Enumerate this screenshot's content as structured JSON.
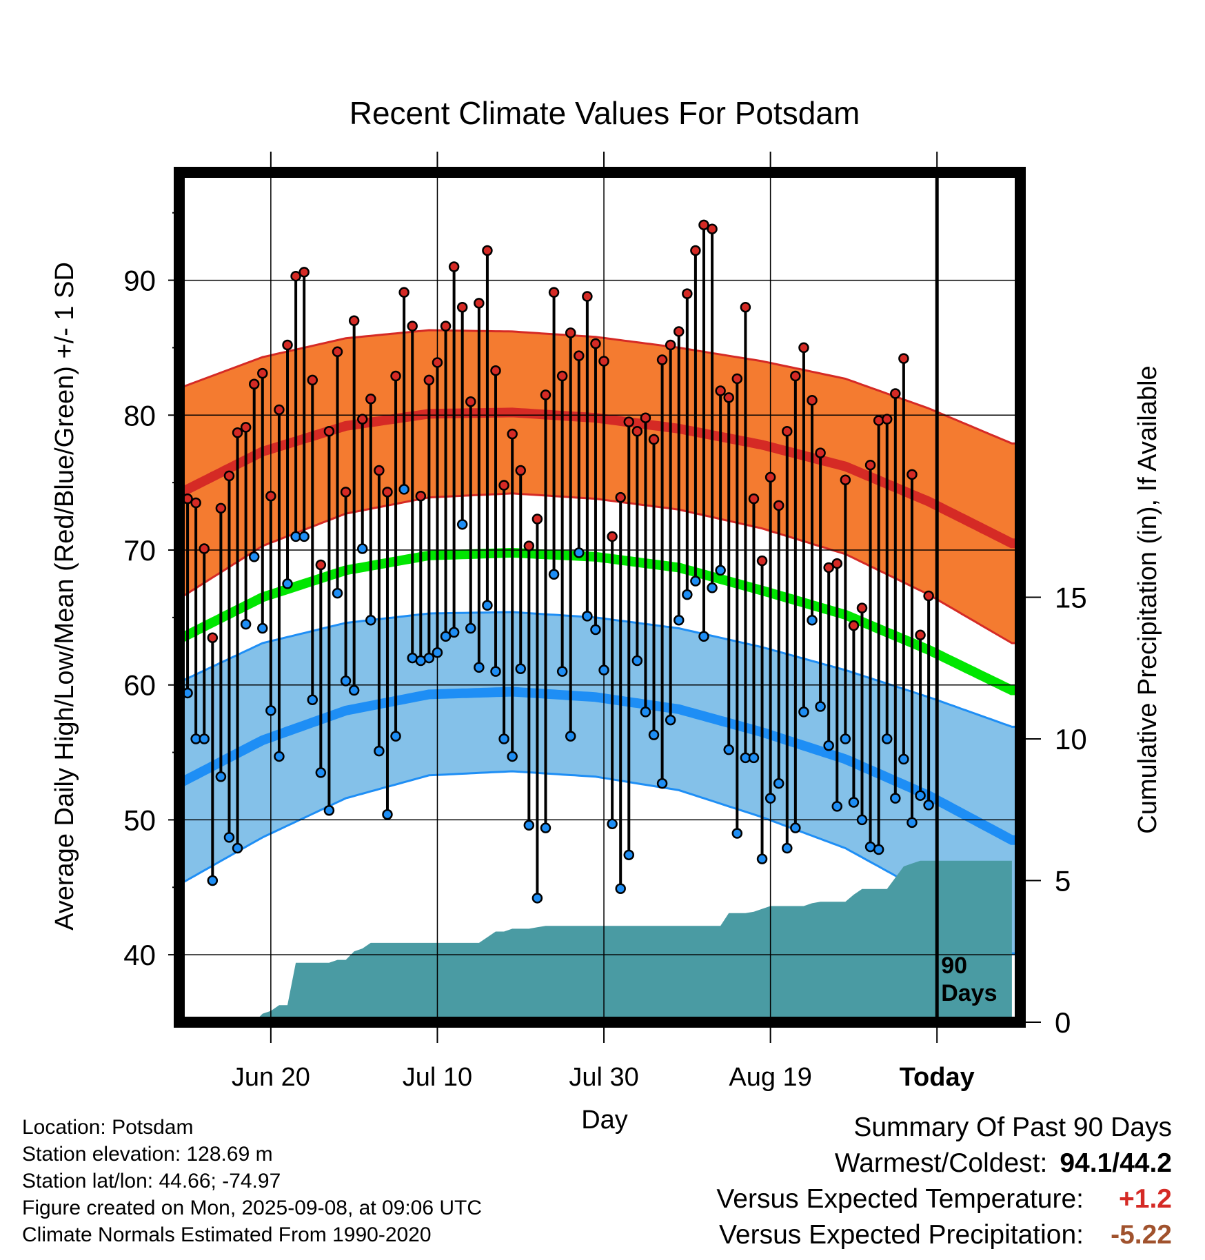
{
  "chart_data": {
    "type": "line",
    "title": "Recent Climate Values For Potsdam",
    "xlabel": "Day",
    "ylabel": "Average Daily High/Low/Mean (Red/Blue/Green) +/- 1 SD",
    "y2label": "Cumulative Precipitation (in), If Available",
    "x_tick_labels": [
      "Jun 20",
      "Jul 10",
      "Jul 30",
      "Aug 19",
      "Today"
    ],
    "x_tick_days": [
      11,
      31,
      51,
      71,
      91
    ],
    "y_ticks": [
      40,
      50,
      60,
      70,
      80,
      90
    ],
    "y_range": [
      35,
      98
    ],
    "y2_ticks": [
      0,
      5,
      10,
      15
    ],
    "y2_range": [
      0,
      30
    ],
    "x_range": [
      0,
      101
    ],
    "today_day": 91,
    "period_label_line1": "90",
    "period_label_line2": "Days",
    "colors": {
      "high": "#d52a25",
      "high_band": "#f47b30",
      "low": "#1e8ef5",
      "low_band": "#84c1e9",
      "mean": "#00e600",
      "precip": "#4a9ba3"
    },
    "normals": {
      "days": [
        0,
        10,
        20,
        30,
        40,
        50,
        60,
        70,
        80,
        90,
        100
      ],
      "high_mean": [
        74.2,
        77.3,
        79.2,
        80.1,
        80.2,
        79.8,
        79.0,
        77.8,
        76.2,
        73.6,
        70.5
      ],
      "high_sd": [
        7.8,
        7.0,
        6.5,
        6.2,
        6.0,
        6.0,
        6.0,
        6.2,
        6.5,
        6.9,
        7.4
      ],
      "low_mean": [
        52.7,
        55.9,
        58.1,
        59.3,
        59.5,
        59.1,
        58.2,
        56.5,
        54.5,
        51.8,
        48.5
      ],
      "low_sd": [
        7.5,
        7.2,
        6.5,
        6.0,
        5.9,
        5.9,
        6.0,
        6.3,
        6.6,
        7.3,
        8.4
      ],
      "daily_mean": [
        63.4,
        66.5,
        68.5,
        69.6,
        69.8,
        69.5,
        68.7,
        67.0,
        65.2,
        62.6,
        59.6
      ]
    },
    "series": [
      {
        "name": "High",
        "values": [
          73.8,
          73.5,
          70.1,
          63.5,
          73.1,
          75.5,
          78.7,
          79.1,
          82.3,
          83.1,
          74.0,
          80.4,
          85.2,
          90.3,
          90.6,
          82.6,
          68.9,
          78.8,
          84.7,
          74.3,
          87.0,
          79.7,
          81.2,
          75.9,
          74.3,
          82.9,
          89.1,
          86.6,
          74.0,
          82.6,
          83.9,
          86.6,
          91.0,
          88.0,
          81.0,
          88.3,
          92.2,
          83.3,
          74.8,
          78.6,
          75.9,
          70.3,
          72.3,
          81.5,
          89.1,
          82.9,
          86.1,
          84.4,
          88.8,
          85.3,
          84.0,
          71.0,
          73.9,
          79.5,
          78.8,
          79.8,
          78.2,
          84.1,
          85.2,
          86.2,
          89.0,
          92.2,
          94.1,
          93.8,
          81.8,
          81.3,
          82.7,
          88.0,
          73.8,
          69.2,
          75.4,
          73.3,
          78.8,
          82.9,
          85.0,
          81.1,
          77.2,
          68.7,
          69.0,
          75.2,
          64.4,
          65.7,
          76.3,
          79.6,
          79.7,
          81.6,
          84.2,
          75.6,
          63.7,
          66.6
        ]
      },
      {
        "name": "Low",
        "values": [
          59.4,
          56.0,
          56.0,
          45.5,
          53.2,
          48.7,
          47.9,
          64.5,
          69.5,
          64.2,
          58.1,
          54.7,
          67.5,
          71.0,
          71.0,
          58.9,
          53.5,
          50.7,
          66.8,
          60.3,
          59.6,
          70.1,
          64.8,
          55.1,
          50.4,
          56.2,
          74.5,
          62.0,
          61.8,
          62.0,
          62.4,
          63.6,
          63.9,
          71.9,
          64.2,
          61.3,
          65.9,
          61.0,
          56.0,
          54.7,
          61.2,
          49.6,
          44.2,
          49.4,
          68.2,
          61.0,
          56.2,
          69.8,
          65.1,
          64.1,
          61.1,
          49.7,
          44.9,
          47.4,
          61.8,
          58.0,
          56.3,
          52.7,
          57.4,
          64.8,
          66.7,
          67.7,
          63.6,
          67.2,
          68.5,
          55.2,
          49.0,
          54.6,
          54.6,
          47.1,
          51.6,
          52.7,
          47.9,
          49.4,
          58.0,
          64.8,
          58.4,
          55.5,
          51.0,
          56.0,
          51.3,
          50.0,
          48.0,
          47.8,
          56.0,
          51.6,
          54.5,
          49.8,
          51.8,
          51.1
        ]
      },
      {
        "name": "Cumulative Precipitation",
        "values": [
          0,
          0,
          0,
          0,
          0,
          0,
          0,
          0,
          0,
          0,
          0.3,
          0.4,
          0.6,
          0.6,
          2.1,
          2.1,
          2.1,
          2.1,
          2.1,
          2.2,
          2.2,
          2.5,
          2.6,
          2.8,
          2.8,
          2.8,
          2.8,
          2.8,
          2.8,
          2.8,
          2.8,
          2.8,
          2.8,
          2.8,
          2.8,
          2.8,
          2.8,
          3.0,
          3.2,
          3.2,
          3.3,
          3.3,
          3.3,
          3.35,
          3.4,
          3.4,
          3.4,
          3.4,
          3.4,
          3.4,
          3.4,
          3.4,
          3.4,
          3.4,
          3.4,
          3.4,
          3.4,
          3.4,
          3.4,
          3.4,
          3.4,
          3.4,
          3.4,
          3.4,
          3.4,
          3.4,
          3.85,
          3.85,
          3.85,
          3.9,
          4.0,
          4.1,
          4.1,
          4.1,
          4.1,
          4.1,
          4.2,
          4.25,
          4.25,
          4.25,
          4.25,
          4.5,
          4.7,
          4.7,
          4.7,
          4.7,
          5.1,
          5.5,
          5.6,
          5.7,
          5.7,
          5.7,
          5.7,
          5.7,
          5.7,
          5.7,
          5.7,
          5.7,
          5.7,
          5.7,
          5.7
        ]
      }
    ]
  },
  "station_info": {
    "location": "Location: Potsdam",
    "elevation": "Station elevation: 128.69 m",
    "latlon": "Station lat/lon: 44.66; -74.97",
    "created": "Figure created on Mon, 2025-09-08, at 09:06 UTC",
    "normals": "Climate Normals Estimated From 1990-2020"
  },
  "summary": {
    "title": "Summary Of Past 90 Days",
    "warmest_coldest_label": "Warmest/Coldest:",
    "warmest_coldest_value": "94.1/44.2",
    "temp_label": "Versus Expected Temperature:",
    "temp_value": "+1.2",
    "precip_label": "Versus Expected Precipitation:",
    "precip_value": "-5.22"
  }
}
